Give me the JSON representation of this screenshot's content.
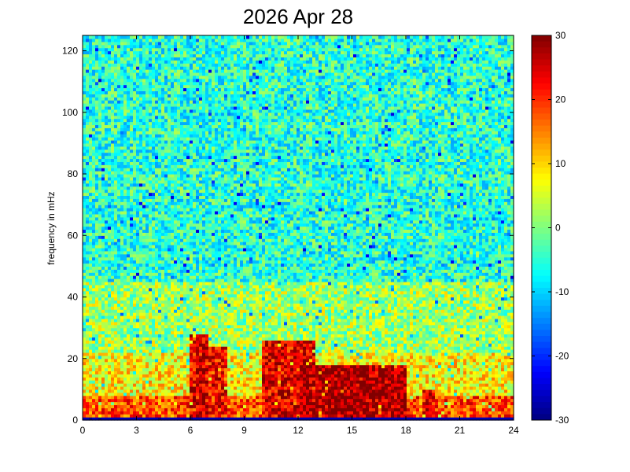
{
  "chart_data": {
    "type": "heatmap",
    "title": "2026 Apr 28",
    "xlabel": "",
    "ylabel": "frequency in mHz",
    "xlim": [
      0,
      24
    ],
    "ylim": [
      0,
      125
    ],
    "x_ticks": [
      "0",
      "3",
      "6",
      "9",
      "12",
      "15",
      "18",
      "21",
      "24"
    ],
    "y_ticks": [
      "0",
      "20",
      "40",
      "60",
      "80",
      "100",
      "120"
    ],
    "colorbar": {
      "colormap": "jet",
      "range": [
        -30,
        30
      ],
      "ticks": [
        "30",
        "20",
        "10",
        "0",
        "-10",
        "-20",
        "-30"
      ]
    },
    "background_level_dB": -5,
    "regions": [
      {
        "x": [
          0,
          24
        ],
        "y": [
          0,
          8
        ],
        "level_dB": 18
      },
      {
        "x": [
          0,
          24
        ],
        "y": [
          8,
          22
        ],
        "level_dB": 8
      },
      {
        "x": [
          0,
          24
        ],
        "y": [
          22,
          45
        ],
        "level_dB": 2
      },
      {
        "x": [
          6,
          7
        ],
        "y": [
          0,
          28
        ],
        "level_dB": 24
      },
      {
        "x": [
          7,
          8
        ],
        "y": [
          0,
          24
        ],
        "level_dB": 22
      },
      {
        "x": [
          10,
          13
        ],
        "y": [
          0,
          26
        ],
        "level_dB": 24
      },
      {
        "x": [
          12,
          18
        ],
        "y": [
          0,
          18
        ],
        "level_dB": 28
      },
      {
        "x": [
          19,
          19.6
        ],
        "y": [
          0,
          10
        ],
        "level_dB": 24
      }
    ]
  }
}
